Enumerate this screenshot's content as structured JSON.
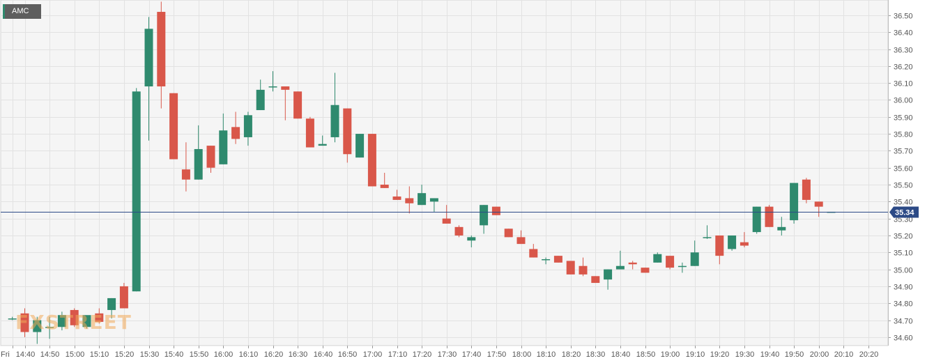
{
  "symbol": "AMC",
  "watermark": "FXSTREET",
  "current_price_label": "35.34",
  "colors": {
    "up": "#2f8a6e",
    "down": "#d9574a",
    "grid": "#e2e2e2",
    "plot_bg": "#f5f5f5",
    "price_line": "#2c4a86",
    "price_tag": "#2c4a86"
  },
  "chart_data": {
    "type": "candlestick",
    "title": "",
    "xlabel": "",
    "ylabel": "",
    "interval_minutes": 5,
    "ylim": [
      34.55,
      36.59
    ],
    "current_price": 35.34,
    "grid": true,
    "y_ticks": [
      34.6,
      34.7,
      34.8,
      34.9,
      35.0,
      35.1,
      35.2,
      35.3,
      35.4,
      35.5,
      35.6,
      35.7,
      35.8,
      35.9,
      36.0,
      36.1,
      36.2,
      36.3,
      36.4,
      36.5
    ],
    "x_ticks": [
      {
        "t": "14:35",
        "label": "Fri"
      },
      {
        "t": "14:40",
        "label": "14:40"
      },
      {
        "t": "14:50",
        "label": "14:50"
      },
      {
        "t": "15:00",
        "label": "15:00"
      },
      {
        "t": "15:10",
        "label": "15:10"
      },
      {
        "t": "15:20",
        "label": "15:20"
      },
      {
        "t": "15:30",
        "label": "15:30"
      },
      {
        "t": "15:40",
        "label": "15:40"
      },
      {
        "t": "15:50",
        "label": "15:50"
      },
      {
        "t": "16:00",
        "label": "16:00"
      },
      {
        "t": "16:10",
        "label": "16:10"
      },
      {
        "t": "16:20",
        "label": "16:20"
      },
      {
        "t": "16:30",
        "label": "16:30"
      },
      {
        "t": "16:40",
        "label": "16:40"
      },
      {
        "t": "16:50",
        "label": "16:50"
      },
      {
        "t": "17:00",
        "label": "17:00"
      },
      {
        "t": "17:10",
        "label": "17:10"
      },
      {
        "t": "17:20",
        "label": "17:20"
      },
      {
        "t": "17:30",
        "label": "17:30"
      },
      {
        "t": "17:40",
        "label": "17:40"
      },
      {
        "t": "17:50",
        "label": "17:50"
      },
      {
        "t": "18:00",
        "label": "18:00"
      },
      {
        "t": "18:10",
        "label": "18:10"
      },
      {
        "t": "18:20",
        "label": "18:20"
      },
      {
        "t": "18:30",
        "label": "18:30"
      },
      {
        "t": "18:40",
        "label": "18:40"
      },
      {
        "t": "18:50",
        "label": "18:50"
      },
      {
        "t": "19:00",
        "label": "19:00"
      },
      {
        "t": "19:10",
        "label": "19:10"
      },
      {
        "t": "19:20",
        "label": "19:20"
      },
      {
        "t": "19:30",
        "label": "19:30"
      },
      {
        "t": "19:40",
        "label": "19:40"
      },
      {
        "t": "19:50",
        "label": "19:50"
      },
      {
        "t": "20:00",
        "label": "20:00"
      },
      {
        "t": "20:10",
        "label": "20:10"
      },
      {
        "t": "20:20",
        "label": "20:20"
      }
    ],
    "candles": [
      {
        "t": "14:35",
        "o": 34.71,
        "h": 34.72,
        "l": 34.7,
        "c": 34.71
      },
      {
        "t": "14:40",
        "o": 34.74,
        "h": 34.77,
        "l": 34.6,
        "c": 34.63
      },
      {
        "t": "14:45",
        "o": 34.63,
        "h": 34.72,
        "l": 34.56,
        "c": 34.7
      },
      {
        "t": "14:50",
        "o": 34.66,
        "h": 34.72,
        "l": 34.59,
        "c": 34.66
      },
      {
        "t": "14:55",
        "o": 34.66,
        "h": 34.75,
        "l": 34.64,
        "c": 34.73
      },
      {
        "t": "15:00",
        "o": 34.76,
        "h": 34.77,
        "l": 34.66,
        "c": 34.67
      },
      {
        "t": "15:05",
        "o": 34.66,
        "h": 34.72,
        "l": 34.65,
        "c": 34.73
      },
      {
        "t": "15:10",
        "o": 34.74,
        "h": 34.77,
        "l": 34.68,
        "c": 34.69
      },
      {
        "t": "15:15",
        "o": 34.76,
        "h": 34.83,
        "l": 34.71,
        "c": 34.83
      },
      {
        "t": "15:20",
        "o": 34.9,
        "h": 34.92,
        "l": 34.77,
        "c": 34.77
      },
      {
        "t": "15:25",
        "o": 34.87,
        "h": 36.07,
        "l": 34.87,
        "c": 36.05
      },
      {
        "t": "15:30",
        "o": 36.08,
        "h": 36.49,
        "l": 35.76,
        "c": 36.42
      },
      {
        "t": "15:35",
        "o": 36.52,
        "h": 36.58,
        "l": 35.95,
        "c": 36.08
      },
      {
        "t": "15:40",
        "o": 36.04,
        "h": 36.04,
        "l": 35.65,
        "c": 35.65
      },
      {
        "t": "15:45",
        "o": 35.59,
        "h": 35.75,
        "l": 35.46,
        "c": 35.53
      },
      {
        "t": "15:50",
        "o": 35.53,
        "h": 35.85,
        "l": 35.53,
        "c": 35.71
      },
      {
        "t": "15:55",
        "o": 35.73,
        "h": 35.73,
        "l": 35.57,
        "c": 35.6
      },
      {
        "t": "16:00",
        "o": 35.62,
        "h": 35.92,
        "l": 35.62,
        "c": 35.82
      },
      {
        "t": "16:05",
        "o": 35.84,
        "h": 35.93,
        "l": 35.74,
        "c": 35.77
      },
      {
        "t": "16:10",
        "o": 35.78,
        "h": 35.93,
        "l": 35.73,
        "c": 35.91
      },
      {
        "t": "16:15",
        "o": 35.94,
        "h": 36.12,
        "l": 35.94,
        "c": 36.06
      },
      {
        "t": "16:20",
        "o": 36.08,
        "h": 36.17,
        "l": 36.05,
        "c": 36.08
      },
      {
        "t": "16:25",
        "o": 36.08,
        "h": 36.08,
        "l": 35.88,
        "c": 36.06
      },
      {
        "t": "16:30",
        "o": 36.05,
        "h": 36.05,
        "l": 35.89,
        "c": 35.89
      },
      {
        "t": "16:35",
        "o": 35.89,
        "h": 35.9,
        "l": 35.72,
        "c": 35.72
      },
      {
        "t": "16:40",
        "o": 35.73,
        "h": 35.79,
        "l": 35.73,
        "c": 35.74
      },
      {
        "t": "16:45",
        "o": 35.78,
        "h": 36.16,
        "l": 35.75,
        "c": 35.97
      },
      {
        "t": "16:50",
        "o": 35.95,
        "h": 35.95,
        "l": 35.63,
        "c": 35.68
      },
      {
        "t": "16:55",
        "o": 35.66,
        "h": 35.8,
        "l": 35.66,
        "c": 35.8
      },
      {
        "t": "17:00",
        "o": 35.8,
        "h": 35.8,
        "l": 35.49,
        "c": 35.49
      },
      {
        "t": "17:05",
        "o": 35.5,
        "h": 35.57,
        "l": 35.48,
        "c": 35.48
      },
      {
        "t": "17:10",
        "o": 35.43,
        "h": 35.47,
        "l": 35.41,
        "c": 35.41
      },
      {
        "t": "17:15",
        "o": 35.42,
        "h": 35.49,
        "l": 35.33,
        "c": 35.39
      },
      {
        "t": "17:20",
        "o": 35.38,
        "h": 35.5,
        "l": 35.38,
        "c": 35.45
      },
      {
        "t": "17:25",
        "o": 35.4,
        "h": 35.42,
        "l": 35.34,
        "c": 35.42
      },
      {
        "t": "17:30",
        "o": 35.3,
        "h": 35.38,
        "l": 35.27,
        "c": 35.27
      },
      {
        "t": "17:35",
        "o": 35.25,
        "h": 35.26,
        "l": 35.19,
        "c": 35.2
      },
      {
        "t": "17:40",
        "o": 35.17,
        "h": 35.2,
        "l": 35.13,
        "c": 35.19
      },
      {
        "t": "17:45",
        "o": 35.26,
        "h": 35.38,
        "l": 35.21,
        "c": 35.38
      },
      {
        "t": "17:50",
        "o": 35.37,
        "h": 35.37,
        "l": 35.32,
        "c": 35.32
      },
      {
        "t": "17:55",
        "o": 35.24,
        "h": 35.24,
        "l": 35.19,
        "c": 35.19
      },
      {
        "t": "18:00",
        "o": 35.19,
        "h": 35.23,
        "l": 35.15,
        "c": 35.15
      },
      {
        "t": "18:05",
        "o": 35.12,
        "h": 35.15,
        "l": 35.07,
        "c": 35.07
      },
      {
        "t": "18:10",
        "o": 35.06,
        "h": 35.07,
        "l": 35.03,
        "c": 35.06
      },
      {
        "t": "18:15",
        "o": 35.08,
        "h": 35.08,
        "l": 35.04,
        "c": 35.04
      },
      {
        "t": "18:20",
        "o": 35.05,
        "h": 35.05,
        "l": 34.97,
        "c": 34.97
      },
      {
        "t": "18:25",
        "o": 35.02,
        "h": 35.07,
        "l": 34.96,
        "c": 34.97
      },
      {
        "t": "18:30",
        "o": 34.96,
        "h": 34.96,
        "l": 34.92,
        "c": 34.92
      },
      {
        "t": "18:35",
        "o": 34.94,
        "h": 35.0,
        "l": 34.88,
        "c": 35.0
      },
      {
        "t": "18:40",
        "o": 35.0,
        "h": 35.11,
        "l": 35.0,
        "c": 35.02
      },
      {
        "t": "18:45",
        "o": 35.04,
        "h": 35.05,
        "l": 35.0,
        "c": 35.03
      },
      {
        "t": "18:50",
        "o": 35.01,
        "h": 35.01,
        "l": 34.98,
        "c": 34.98
      },
      {
        "t": "18:55",
        "o": 35.04,
        "h": 35.1,
        "l": 35.04,
        "c": 35.09
      },
      {
        "t": "19:00",
        "o": 35.08,
        "h": 35.08,
        "l": 35.0,
        "c": 35.01
      },
      {
        "t": "19:05",
        "o": 35.02,
        "h": 35.04,
        "l": 34.98,
        "c": 35.02
      },
      {
        "t": "19:10",
        "o": 35.02,
        "h": 35.17,
        "l": 35.02,
        "c": 35.1
      },
      {
        "t": "19:15",
        "o": 35.19,
        "h": 35.26,
        "l": 35.18,
        "c": 35.19
      },
      {
        "t": "19:20",
        "o": 35.2,
        "h": 35.2,
        "l": 35.03,
        "c": 35.08
      },
      {
        "t": "19:25",
        "o": 35.12,
        "h": 35.2,
        "l": 35.11,
        "c": 35.2
      },
      {
        "t": "19:30",
        "o": 35.16,
        "h": 35.22,
        "l": 35.13,
        "c": 35.14
      },
      {
        "t": "19:35",
        "o": 35.22,
        "h": 35.37,
        "l": 35.21,
        "c": 35.37
      },
      {
        "t": "19:40",
        "o": 35.37,
        "h": 35.38,
        "l": 35.25,
        "c": 35.25
      },
      {
        "t": "19:45",
        "o": 35.23,
        "h": 35.31,
        "l": 35.2,
        "c": 35.25
      },
      {
        "t": "19:50",
        "o": 35.29,
        "h": 35.51,
        "l": 35.27,
        "c": 35.51
      },
      {
        "t": "19:55",
        "o": 35.53,
        "h": 35.54,
        "l": 35.39,
        "c": 35.41
      },
      {
        "t": "20:00",
        "o": 35.4,
        "h": 35.4,
        "l": 35.31,
        "c": 35.37
      },
      {
        "t": "20:05",
        "o": 35.34,
        "h": 35.34,
        "l": 35.34,
        "c": 35.34
      }
    ]
  }
}
